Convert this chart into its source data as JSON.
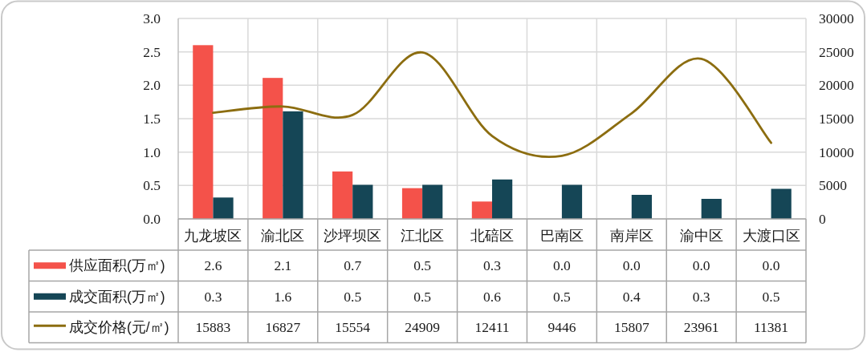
{
  "chart_data": {
    "type": "bar",
    "categories": [
      "九龙坡区",
      "渝北区",
      "沙坪坝区",
      "江北区",
      "北碚区",
      "巴南区",
      "南岸区",
      "渝中区",
      "大渡口区"
    ],
    "series": [
      {
        "name": "供应面积(万㎡)",
        "color": "#f4524a",
        "values": [
          2.6,
          2.11,
          0.71,
          0.46,
          0.26,
          0,
          0,
          0,
          0
        ],
        "value_labels": [
          "2.6",
          "2.1",
          "0.7",
          "0.5",
          "0.3",
          "0.0",
          "0.0",
          "0.0",
          "0.0"
        ]
      },
      {
        "name": "成交面积(万㎡)",
        "color": "#154656",
        "values": [
          0.32,
          1.61,
          0.51,
          0.51,
          0.59,
          0.51,
          0.36,
          0.3,
          0.45
        ],
        "value_labels": [
          "0.3",
          "1.6",
          "0.5",
          "0.5",
          "0.6",
          "0.5",
          "0.4",
          "0.3",
          "0.5"
        ]
      },
      {
        "name": "成交价格(元/㎡)",
        "type": "line",
        "axis": "y2",
        "color": "#8c6d10",
        "values": [
          15883,
          16827,
          15554,
          24909,
          12411,
          9446,
          15807,
          23961,
          11381
        ],
        "value_labels": [
          "15883",
          "16827",
          "15554",
          "24909",
          "12411",
          "9446",
          "15807",
          "23961",
          "11381"
        ]
      }
    ],
    "ylim": [
      0,
      3
    ],
    "yticks": [
      {
        "value": 0,
        "label": "0.0"
      },
      0.5,
      {
        "value": 1,
        "label": "1.0"
      },
      1.5,
      {
        "value": 2,
        "label": "2.0"
      },
      2.5,
      {
        "value": 3,
        "label": "3.0"
      }
    ],
    "y2lim": [
      0,
      30000
    ],
    "y2ticks": [
      0,
      5000,
      10000,
      15000,
      20000,
      25000,
      30000
    ],
    "grid": true,
    "legend": "bottom left"
  }
}
